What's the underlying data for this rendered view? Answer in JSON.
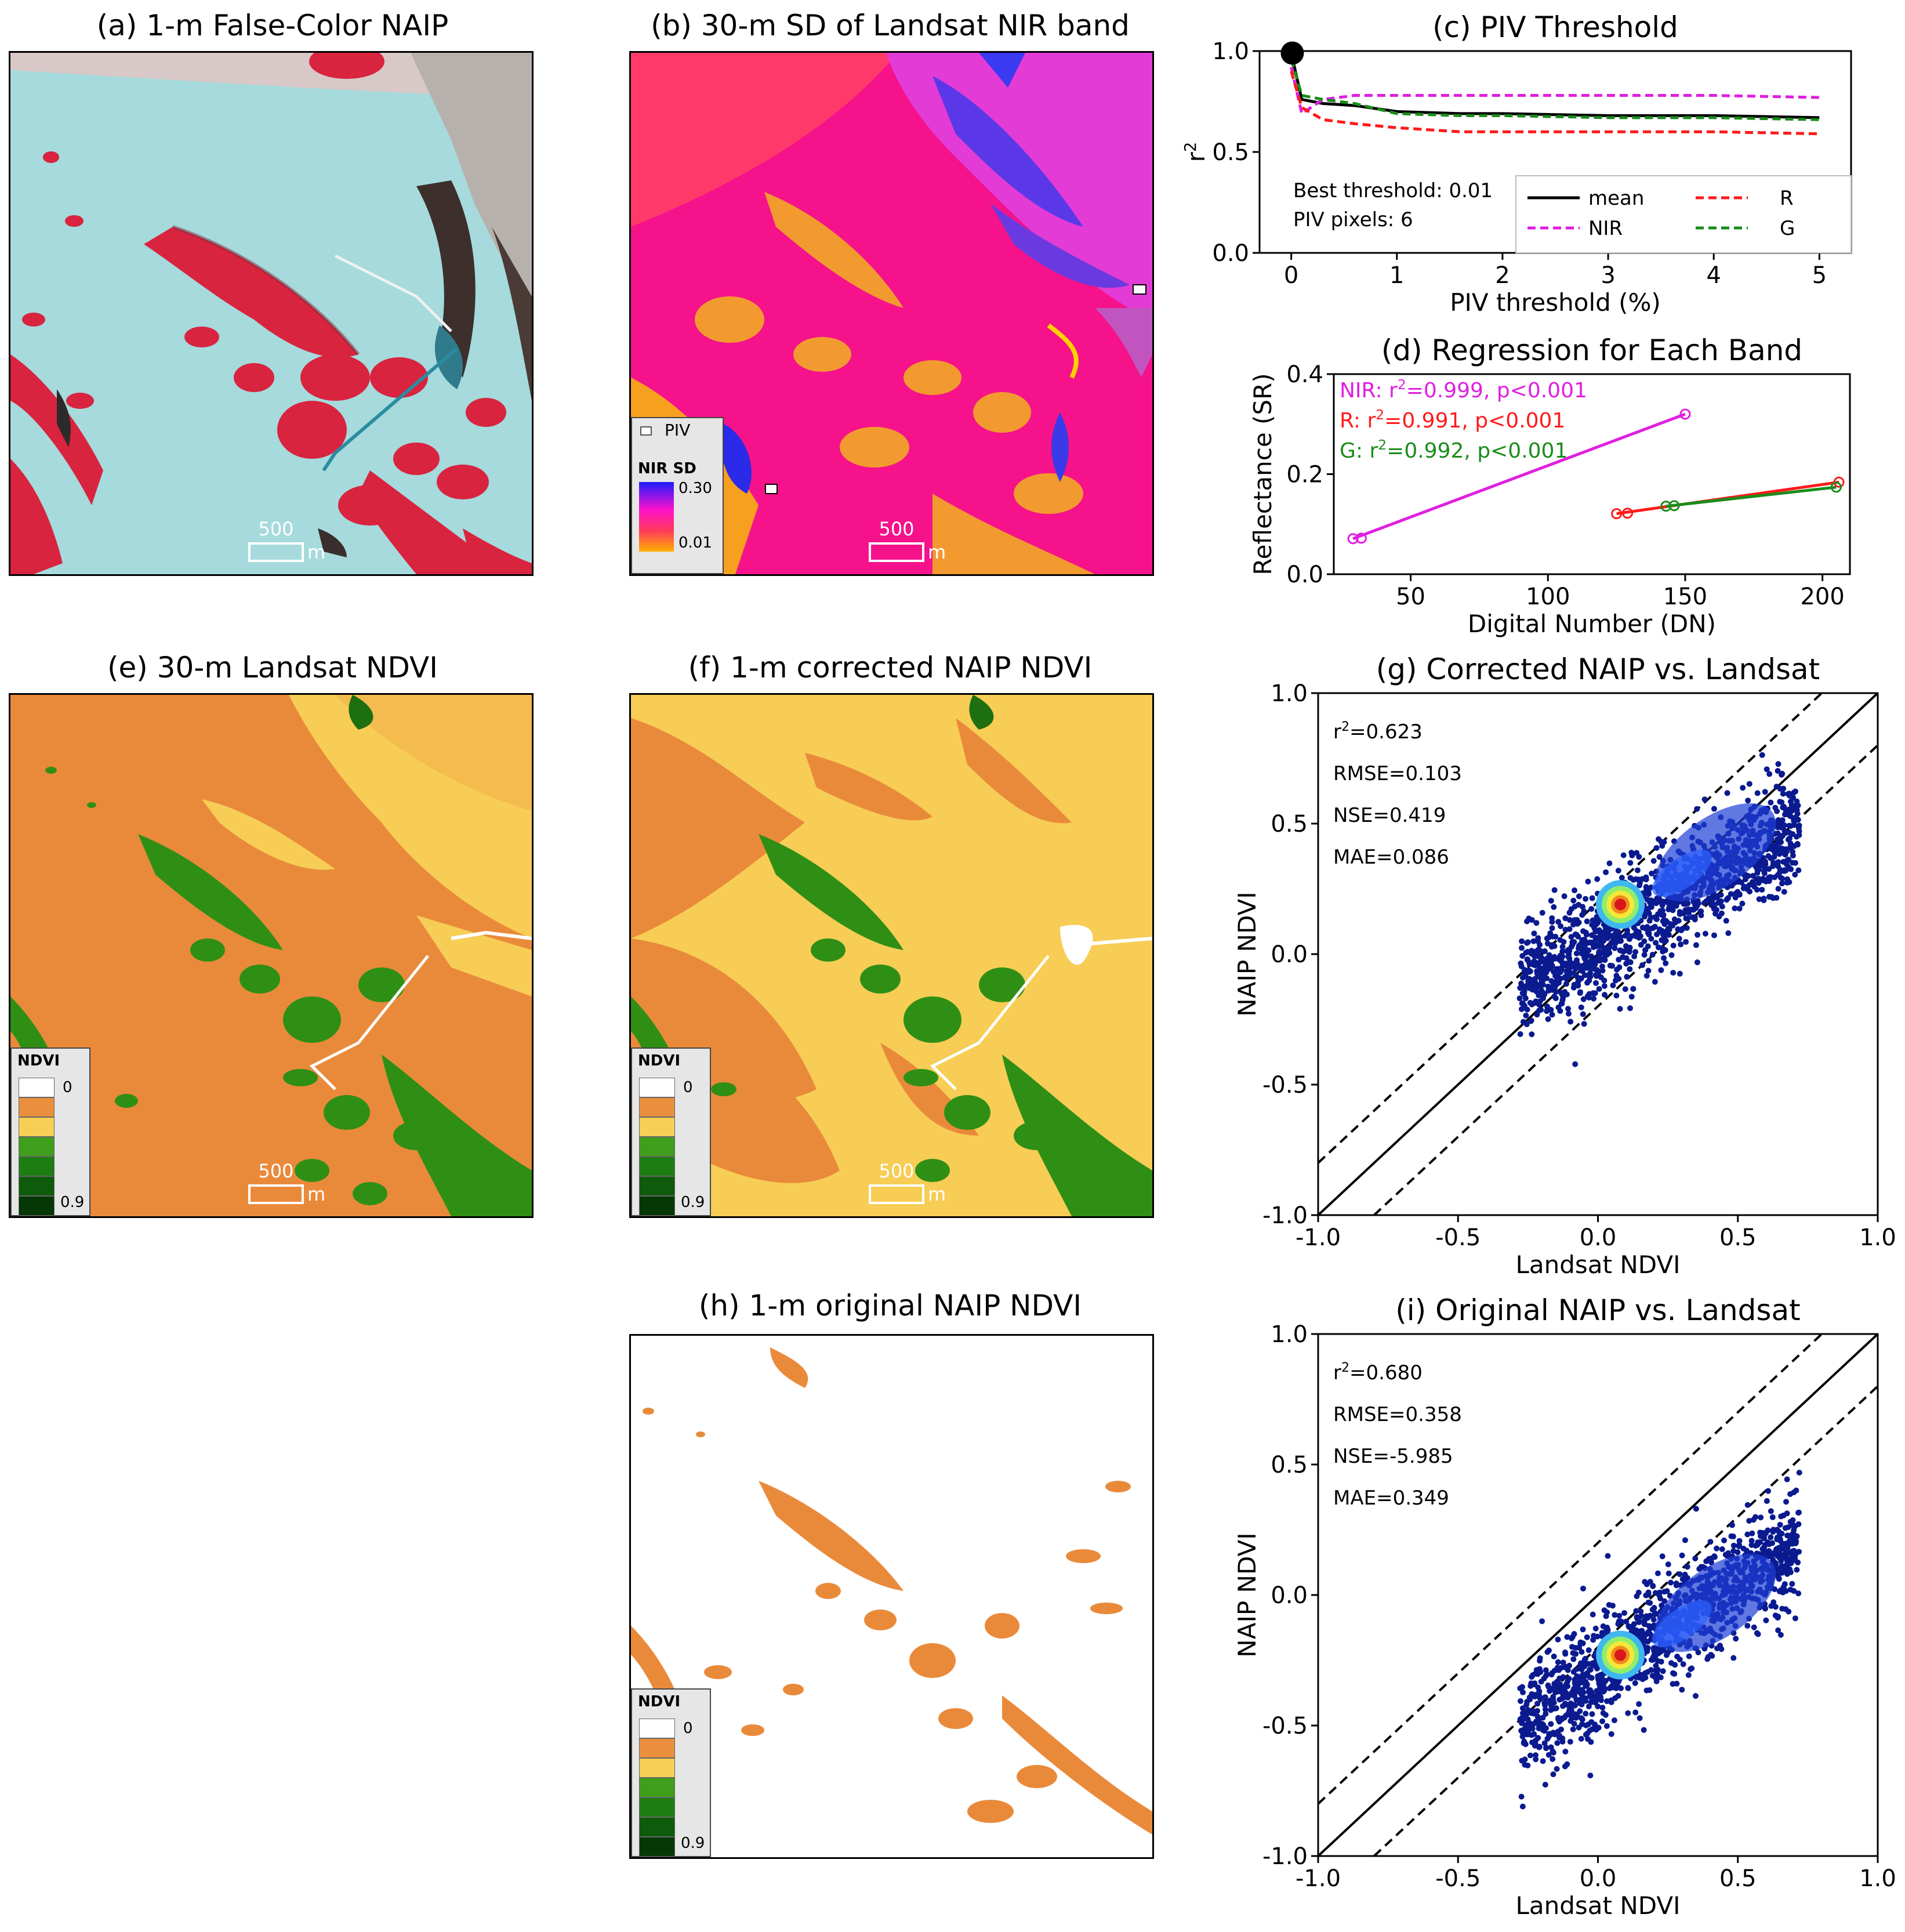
{
  "panels": {
    "a": {
      "title": "(a) 1-m False-Color NAIP",
      "scale_value": "500",
      "scale_unit": "m"
    },
    "b": {
      "title": "(b) 30-m SD of Landsat NIR band",
      "scale_value": "500",
      "scale_unit": "m",
      "legend": {
        "piv_label": "PIV",
        "title": "NIR SD",
        "max": "0.30",
        "min": "0.01"
      }
    },
    "c": {
      "title": "(c) PIV Threshold"
    },
    "d": {
      "title": "(d) Regression for Each Band"
    },
    "e": {
      "title": "(e) 30-m Landsat NDVI",
      "scale_value": "500",
      "scale_unit": "m",
      "legend": {
        "title": "NDVI",
        "min": "0",
        "max": "0.9"
      }
    },
    "f": {
      "title": "(f) 1-m corrected NAIP NDVI",
      "scale_value": "500",
      "scale_unit": "m",
      "legend": {
        "title": "NDVI",
        "min": "0",
        "max": "0.9"
      }
    },
    "g": {
      "title": "(g) Corrected NAIP vs. Landsat"
    },
    "h": {
      "title": "(h) 1-m original NAIP NDVI",
      "legend": {
        "title": "NDVI",
        "min": "0",
        "max": "0.9"
      }
    },
    "i": {
      "title": "(i) Original NAIP vs. Landsat"
    }
  },
  "ndvi_legend_colors": [
    "#ffffff",
    "#ea8f3e",
    "#f7cf56",
    "#3f9e1b",
    "#1d7d12",
    "#0d5b0b",
    "#063706"
  ],
  "map_colors": {
    "cyan": "#9fd9dc",
    "red": "#d8243f",
    "magenta": "#f5128a",
    "orange": "#f49a2a",
    "blue": "#4a39e0",
    "ndvi_orange": "#e98a3b",
    "ndvi_yellow": "#f7cd55",
    "ndvi_green": "#2f8f14"
  },
  "chart_data": [
    {
      "id": "c",
      "type": "line",
      "title": "(c) PIV Threshold",
      "xlabel": "PIV threshold (%)",
      "ylabel": "r2",
      "xlim": [
        -0.3,
        5.3
      ],
      "ylim": [
        0.0,
        1.0
      ],
      "xticks": [
        "0",
        "1",
        "2",
        "3",
        "4",
        "5"
      ],
      "yticks": [
        "0.0",
        "0.5",
        "1.0"
      ],
      "x": [
        0,
        0.1,
        0.3,
        0.6,
        1.0,
        1.6,
        2.0,
        3.0,
        4.0,
        5.0
      ],
      "series": [
        {
          "name": "mean",
          "color": "#000000",
          "dash": "",
          "values": [
            0.99,
            0.76,
            0.74,
            0.73,
            0.7,
            0.69,
            0.69,
            0.68,
            0.68,
            0.67
          ]
        },
        {
          "name": "NIR",
          "color": "#e01ee0",
          "dash": "14,8",
          "values": [
            0.92,
            0.69,
            0.76,
            0.78,
            0.78,
            0.78,
            0.78,
            0.78,
            0.78,
            0.77
          ]
        },
        {
          "name": "R",
          "color": "#ff1a1a",
          "dash": "14,8",
          "values": [
            0.9,
            0.72,
            0.66,
            0.64,
            0.62,
            0.6,
            0.6,
            0.6,
            0.6,
            0.59
          ]
        },
        {
          "name": "G",
          "color": "#1a8c1a",
          "dash": "14,8",
          "values": [
            0.96,
            0.78,
            0.76,
            0.74,
            0.69,
            0.68,
            0.68,
            0.67,
            0.67,
            0.66
          ]
        }
      ],
      "best_point": {
        "x": 0.01,
        "y": 0.99
      },
      "annotations": [
        "Best threshold: 0.01",
        "PIV pixels: 6"
      ]
    },
    {
      "id": "d",
      "type": "scatter",
      "title": "(d) Regression for Each Band",
      "xlabel": "Digital Number (DN)",
      "ylabel": "Reflectance (SR)",
      "xlim": [
        22,
        210
      ],
      "ylim": [
        0.0,
        0.4
      ],
      "xticks": [
        "50",
        "100",
        "150",
        "200"
      ],
      "yticks": [
        "0.0",
        "0.2",
        "0.4"
      ],
      "series": [
        {
          "name": "NIR",
          "color": "#e01ee0",
          "label": "NIR: r2=0.999, p<0.001",
          "x": [
            29,
            32,
            150
          ],
          "y": [
            0.071,
            0.072,
            0.32
          ]
        },
        {
          "name": "R",
          "color": "#ff1a1a",
          "label": "R: r2=0.991, p<0.001",
          "x": [
            125,
            129,
            206
          ],
          "y": [
            0.121,
            0.122,
            0.184
          ]
        },
        {
          "name": "G",
          "color": "#1a8c1a",
          "label": "G: r2=0.992, p<0.001",
          "x": [
            143,
            146,
            205
          ],
          "y": [
            0.136,
            0.137,
            0.174
          ]
        }
      ]
    },
    {
      "id": "g",
      "type": "scatter",
      "title": "(g) Corrected NAIP vs. Landsat",
      "xlabel": "Landsat NDVI",
      "ylabel": "NAIP NDVI",
      "xlim": [
        -1.0,
        1.0
      ],
      "ylim": [
        -1.0,
        1.0
      ],
      "xticks": [
        "-1.0",
        "-0.5",
        "0.0",
        "0.5",
        "1.0"
      ],
      "yticks": [
        "-1.0",
        "-0.5",
        "0.0",
        "0.5",
        "1.0"
      ],
      "stats": [
        "r2=0.623",
        "RMSE=0.103",
        "NSE=0.419",
        "MAE=0.086"
      ],
      "cloud": {
        "x_range": [
          -0.28,
          0.72
        ],
        "y_center_at_x0": 0.05,
        "slope": 0.62,
        "spread": 0.13,
        "peak": [
          0.08,
          0.19
        ],
        "n": 1400
      }
    },
    {
      "id": "i",
      "type": "scatter",
      "title": "(i) Original NAIP vs. Landsat",
      "xlabel": "Landsat NDVI",
      "ylabel": "NAIP NDVI",
      "xlim": [
        -1.0,
        1.0
      ],
      "ylim": [
        -1.0,
        1.0
      ],
      "xticks": [
        "-1.0",
        "-0.5",
        "0.0",
        "0.5",
        "1.0"
      ],
      "yticks": [
        "-1.0",
        "-0.5",
        "0.0",
        "0.5",
        "1.0"
      ],
      "stats": [
        "r2=0.680",
        "RMSE=0.358",
        "NSE=-5.985",
        "MAE=0.349"
      ],
      "cloud": {
        "x_range": [
          -0.28,
          0.72
        ],
        "y_center_at_x0": -0.3,
        "slope": 0.7,
        "spread": 0.13,
        "peak": [
          0.08,
          -0.23
        ],
        "n": 1400
      }
    }
  ]
}
